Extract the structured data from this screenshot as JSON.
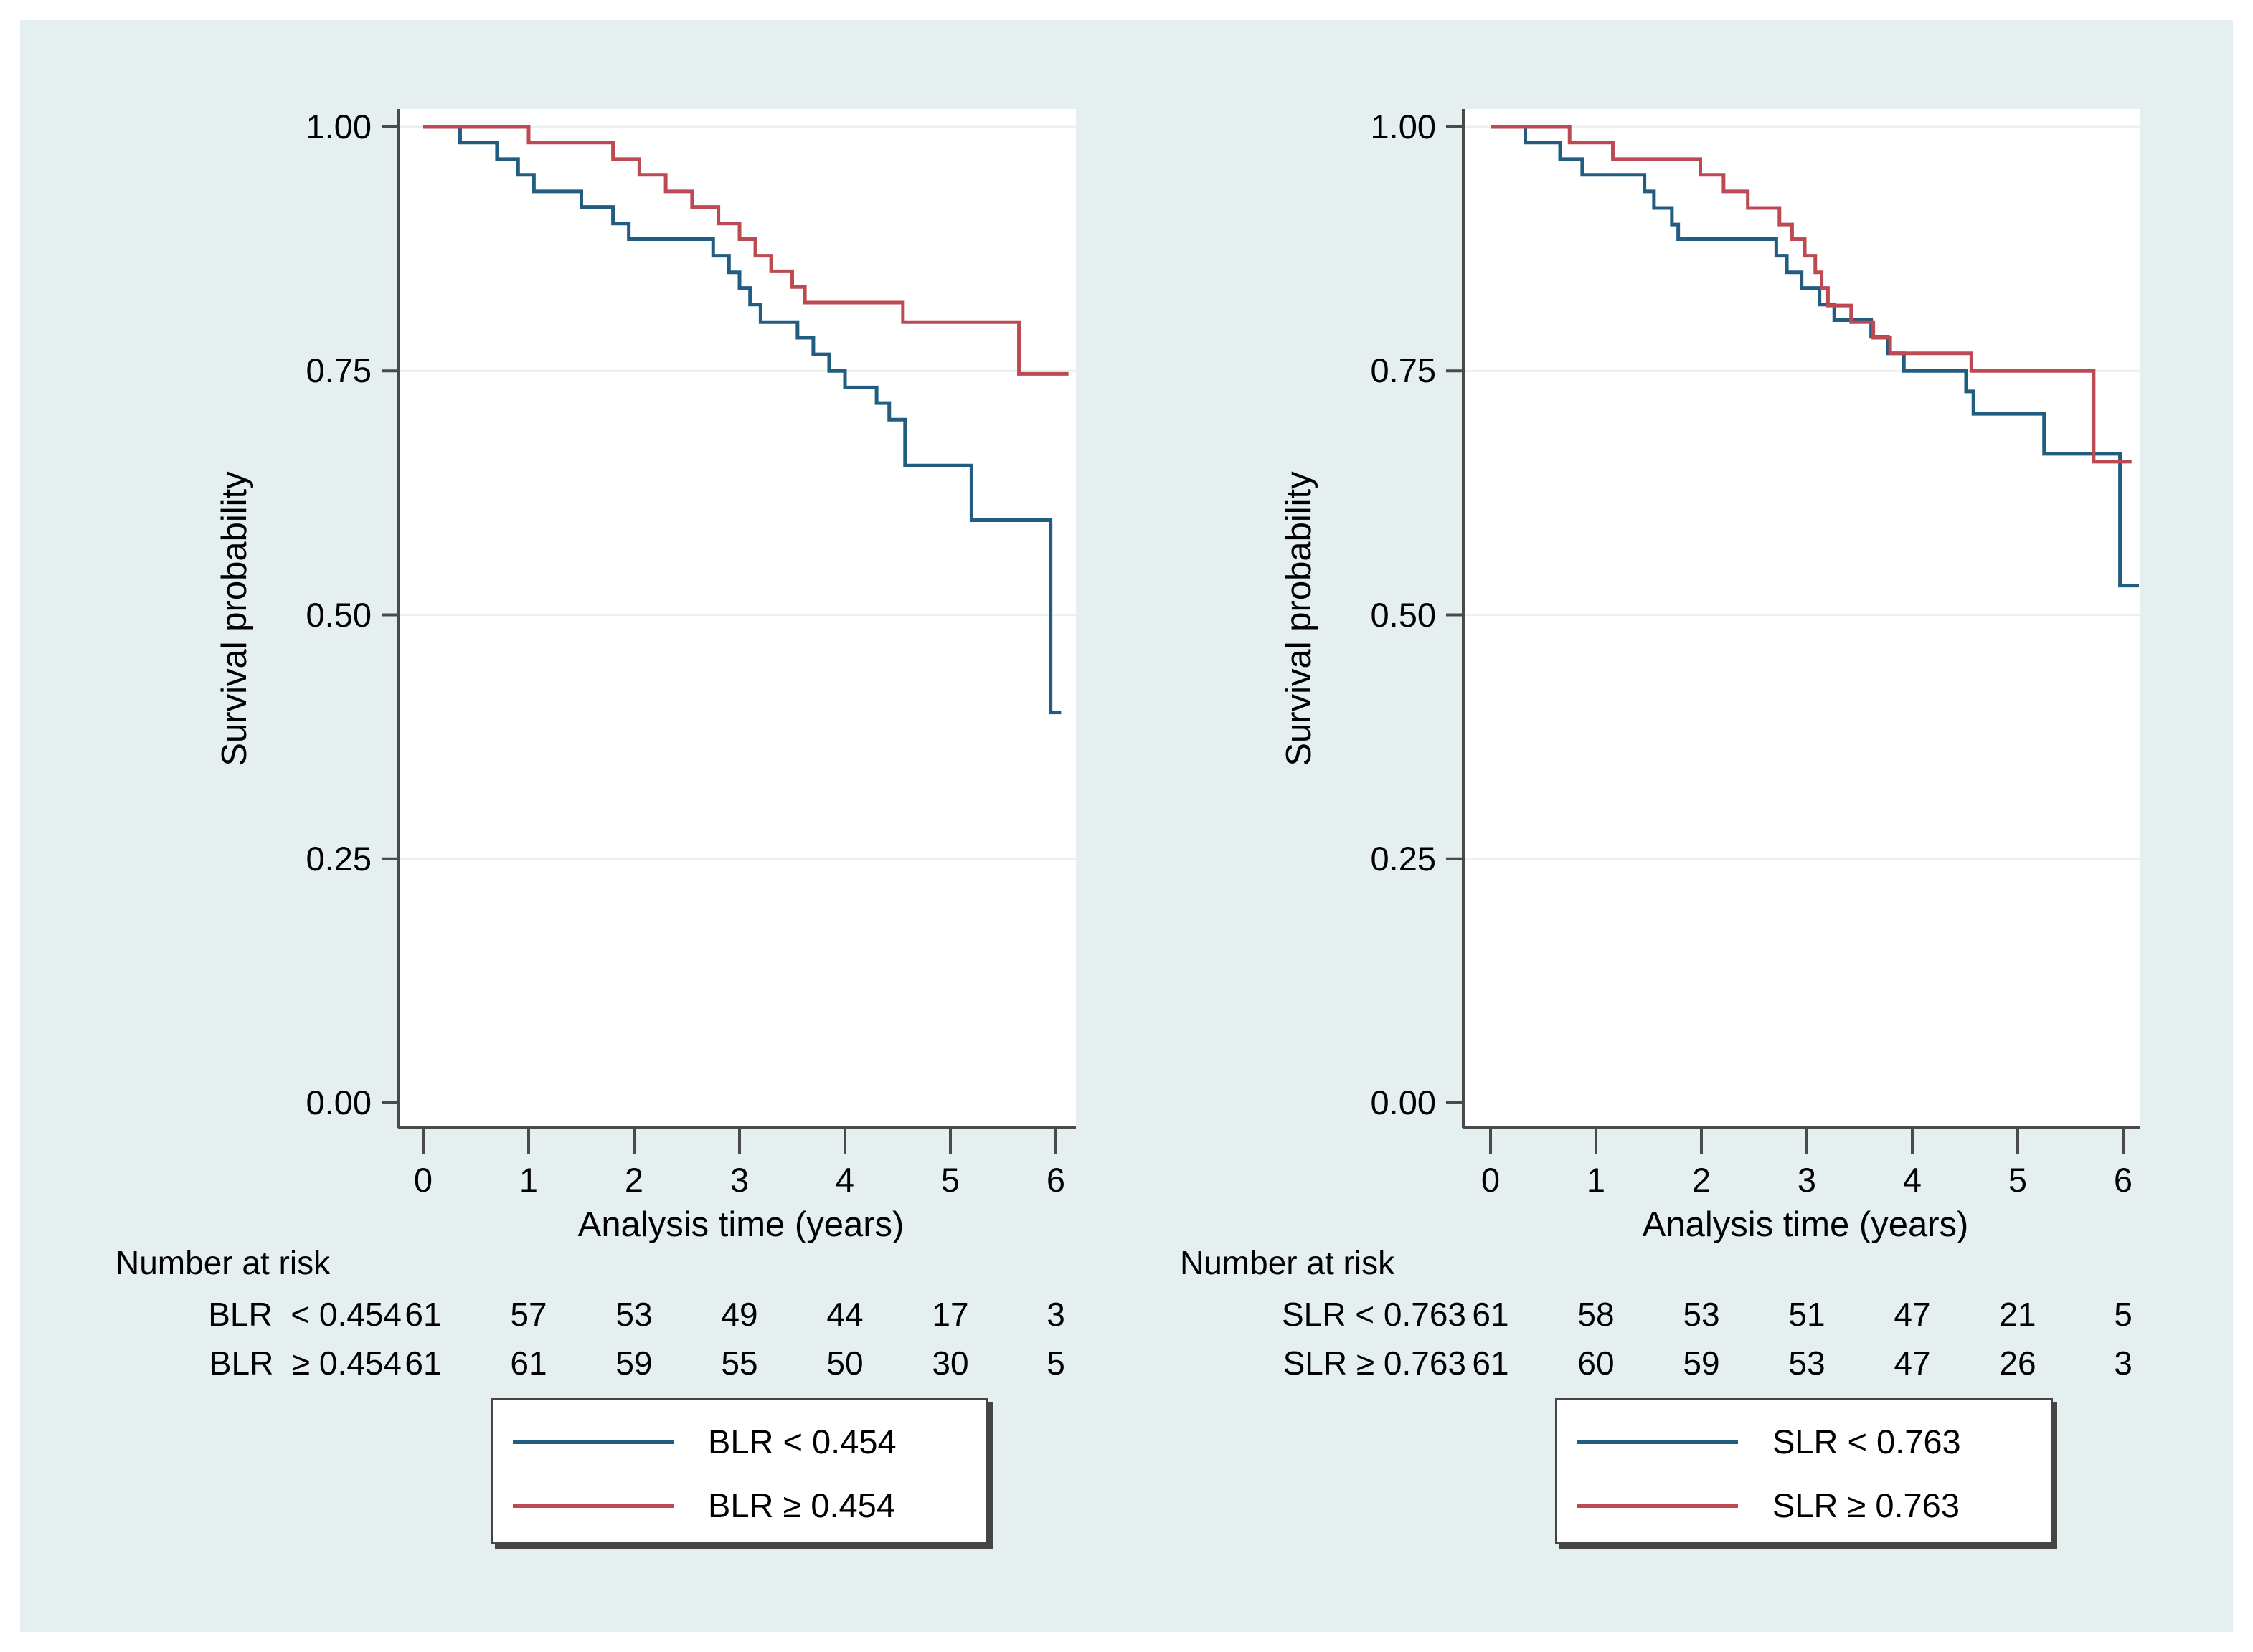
{
  "style": {
    "background": "#e5eff0",
    "plot": "#ffffff",
    "grid": "#e8f0f2",
    "axis": "#4a4a4a",
    "text": "#000000",
    "legend_border": "#454545",
    "blue": "#205d80",
    "red": "#bd4a52"
  },
  "chart_data": [
    {
      "type": "line",
      "subtype": "kaplan-meier-step",
      "title": "",
      "xlabel": "Analysis time (years)",
      "ylabel": "Survival probability",
      "xlim": [
        0,
        6.2
      ],
      "ylim": [
        0,
        1
      ],
      "grid": "horizontal",
      "legend_position": "below",
      "x_ticks": [
        {
          "value": 0,
          "label": "0"
        },
        {
          "value": 1,
          "label": "1"
        },
        {
          "value": 2,
          "label": "2"
        },
        {
          "value": 3,
          "label": "3"
        },
        {
          "value": 4,
          "label": "4"
        },
        {
          "value": 5,
          "label": "5"
        },
        {
          "value": 6,
          "label": "6"
        }
      ],
      "y_ticks": [
        {
          "value": 1.0,
          "label": "1.00"
        },
        {
          "value": 0.75,
          "label": "0.75"
        },
        {
          "value": 0.5,
          "label": "0.50"
        },
        {
          "value": 0.25,
          "label": "0.25"
        },
        {
          "value": 0.0,
          "label": "0.00"
        }
      ],
      "series": [
        {
          "name": "BLR < 0.454",
          "color": "#205d80",
          "points": [
            [
              0,
              1.0
            ],
            [
              0.35,
              0.984
            ],
            [
              0.7,
              0.967
            ],
            [
              0.9,
              0.951
            ],
            [
              1.05,
              0.934
            ],
            [
              1.5,
              0.918
            ],
            [
              1.8,
              0.901
            ],
            [
              1.95,
              0.885
            ],
            [
              2.75,
              0.868
            ],
            [
              2.9,
              0.851
            ],
            [
              3.0,
              0.835
            ],
            [
              3.1,
              0.818
            ],
            [
              3.2,
              0.8
            ],
            [
              3.55,
              0.784
            ],
            [
              3.7,
              0.767
            ],
            [
              3.85,
              0.75
            ],
            [
              4.0,
              0.733
            ],
            [
              4.3,
              0.717
            ],
            [
              4.42,
              0.7
            ],
            [
              4.57,
              0.653
            ],
            [
              5.2,
              0.597
            ],
            [
              5.95,
              0.4
            ],
            [
              6.05,
              0.4
            ]
          ]
        },
        {
          "name": "BLR ≥ 0.454",
          "color": "#bd4a52",
          "points": [
            [
              0,
              1.0
            ],
            [
              1.0,
              0.984
            ],
            [
              1.8,
              0.967
            ],
            [
              2.05,
              0.951
            ],
            [
              2.3,
              0.934
            ],
            [
              2.55,
              0.918
            ],
            [
              2.8,
              0.901
            ],
            [
              3.0,
              0.885
            ],
            [
              3.15,
              0.868
            ],
            [
              3.3,
              0.852
            ],
            [
              3.5,
              0.836
            ],
            [
              3.62,
              0.82
            ],
            [
              4.55,
              0.8
            ],
            [
              5.65,
              0.747
            ],
            [
              6.12,
              0.747
            ]
          ]
        }
      ],
      "number_at_risk": {
        "header": "Number at risk",
        "time_points": [
          0,
          1,
          2,
          3,
          4,
          5,
          6
        ],
        "rows": [
          {
            "label": "BLR  < 0.454",
            "counts": [
              61,
              57,
              53,
              49,
              44,
              17,
              3
            ]
          },
          {
            "label": "BLR  ≥ 0.454",
            "counts": [
              61,
              61,
              59,
              55,
              50,
              30,
              5
            ]
          }
        ]
      }
    },
    {
      "type": "line",
      "subtype": "kaplan-meier-step",
      "title": "",
      "xlabel": "Analysis time (years)",
      "ylabel": "Survival probability",
      "xlim": [
        0,
        6.2
      ],
      "ylim": [
        0,
        1
      ],
      "grid": "horizontal",
      "legend_position": "below",
      "x_ticks": [
        {
          "value": 0,
          "label": "0"
        },
        {
          "value": 1,
          "label": "1"
        },
        {
          "value": 2,
          "label": "2"
        },
        {
          "value": 3,
          "label": "3"
        },
        {
          "value": 4,
          "label": "4"
        },
        {
          "value": 5,
          "label": "5"
        },
        {
          "value": 6,
          "label": "6"
        }
      ],
      "y_ticks": [
        {
          "value": 1.0,
          "label": "1.00"
        },
        {
          "value": 0.75,
          "label": "0.75"
        },
        {
          "value": 0.5,
          "label": "0.50"
        },
        {
          "value": 0.25,
          "label": "0.25"
        },
        {
          "value": 0.0,
          "label": "0.00"
        }
      ],
      "series": [
        {
          "name": "SLR < 0.763",
          "color": "#205d80",
          "points": [
            [
              0,
              1.0
            ],
            [
              0.33,
              0.984
            ],
            [
              0.66,
              0.967
            ],
            [
              0.87,
              0.951
            ],
            [
              1.46,
              0.934
            ],
            [
              1.55,
              0.917
            ],
            [
              1.72,
              0.9
            ],
            [
              1.78,
              0.885
            ],
            [
              2.71,
              0.868
            ],
            [
              2.81,
              0.851
            ],
            [
              2.95,
              0.835
            ],
            [
              3.12,
              0.818
            ],
            [
              3.26,
              0.802
            ],
            [
              3.61,
              0.785
            ],
            [
              3.77,
              0.768
            ],
            [
              3.92,
              0.75
            ],
            [
              4.51,
              0.729
            ],
            [
              4.58,
              0.706
            ],
            [
              5.25,
              0.665
            ],
            [
              5.97,
              0.53
            ],
            [
              6.15,
              0.53
            ]
          ]
        },
        {
          "name": "SLR ≥ 0.763",
          "color": "#bd4a52",
          "points": [
            [
              0,
              1.0
            ],
            [
              0.75,
              0.984
            ],
            [
              1.16,
              0.967
            ],
            [
              1.99,
              0.951
            ],
            [
              2.21,
              0.934
            ],
            [
              2.44,
              0.917
            ],
            [
              2.74,
              0.9
            ],
            [
              2.86,
              0.885
            ],
            [
              2.98,
              0.868
            ],
            [
              3.08,
              0.851
            ],
            [
              3.14,
              0.835
            ],
            [
              3.2,
              0.817
            ],
            [
              3.42,
              0.8
            ],
            [
              3.63,
              0.784
            ],
            [
              3.79,
              0.768
            ],
            [
              4.56,
              0.75
            ],
            [
              5.72,
              0.657
            ],
            [
              6.08,
              0.657
            ]
          ]
        }
      ],
      "number_at_risk": {
        "header": "Number at risk",
        "time_points": [
          0,
          1,
          2,
          3,
          4,
          5,
          6
        ],
        "rows": [
          {
            "label": "SLR < 0.763",
            "counts": [
              61,
              58,
              53,
              51,
              47,
              21,
              5
            ]
          },
          {
            "label": "SLR ≥ 0.763",
            "counts": [
              61,
              60,
              59,
              53,
              47,
              26,
              3
            ]
          }
        ]
      }
    }
  ]
}
